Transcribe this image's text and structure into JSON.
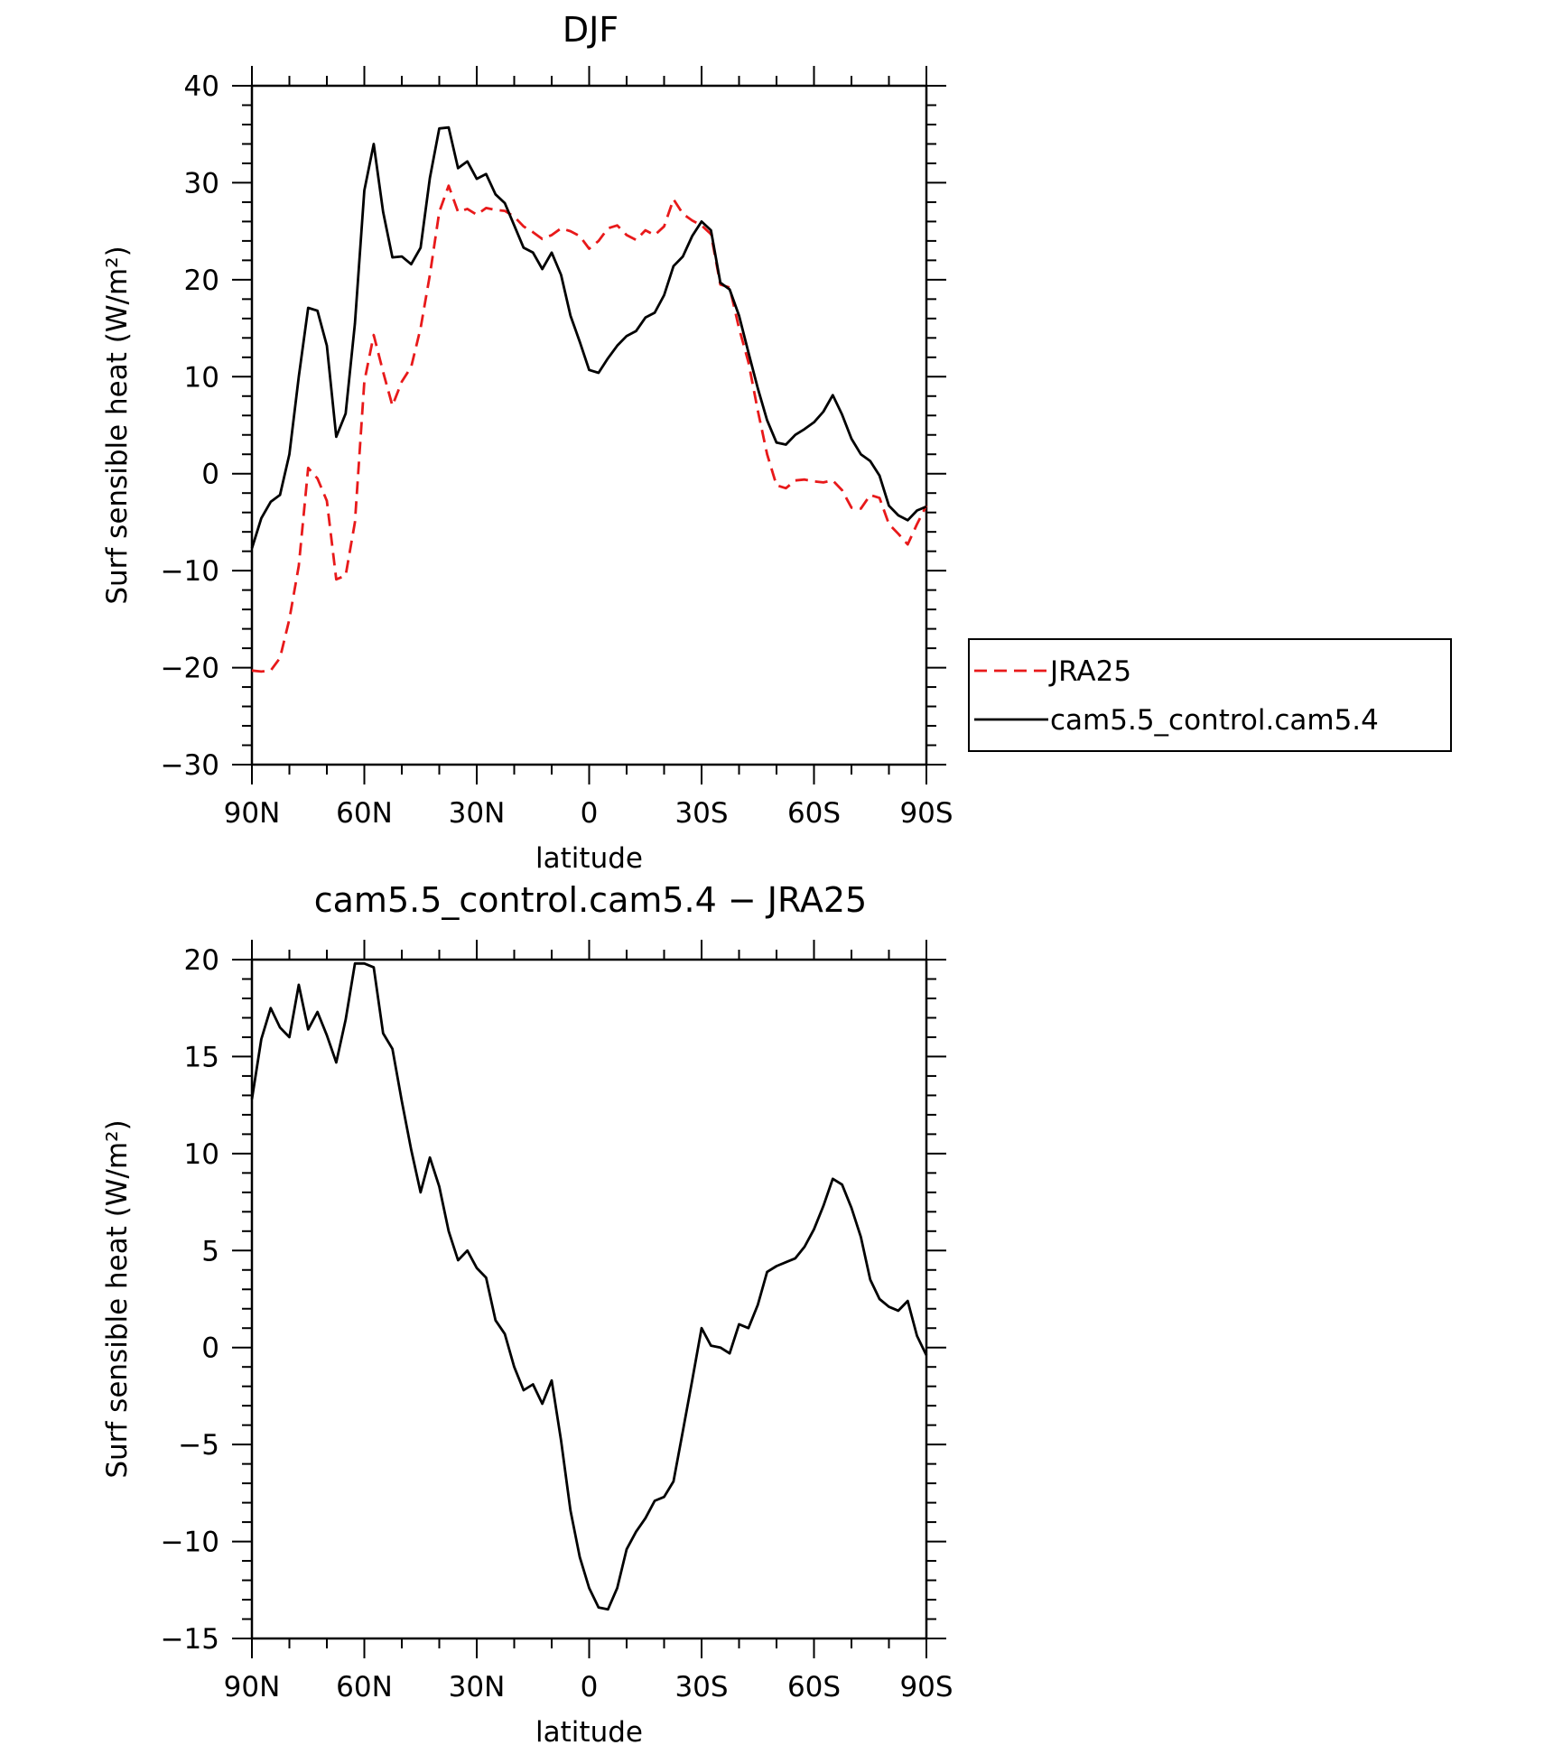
{
  "chart_data": [
    {
      "type": "line",
      "title": "DJF",
      "xlabel": "latitude",
      "ylabel": "Surf sensible heat (W/m²)",
      "xlim": [
        90,
        -90
      ],
      "ylim": [
        -30,
        40
      ],
      "xticks": [
        90,
        60,
        30,
        0,
        -30,
        -60,
        -90
      ],
      "xticklabels": [
        "90N",
        "60N",
        "30N",
        "0",
        "30S",
        "60S",
        "90S"
      ],
      "yticks": [
        -30,
        -20,
        -10,
        0,
        10,
        20,
        30,
        40
      ],
      "yticklabels": [
        "−30",
        "−20",
        "−10",
        "0",
        "10",
        "20",
        "30",
        "40"
      ],
      "legend": "right",
      "series": [
        {
          "name": "JRA25",
          "color": "#e8191a",
          "dash": "dashed",
          "x": [
            90,
            87.5,
            85,
            82.5,
            80,
            77.5,
            75,
            72.5,
            70,
            67.5,
            65,
            62.5,
            60,
            57.5,
            55,
            52.5,
            50,
            47.5,
            45,
            42.5,
            40,
            37.5,
            35,
            32.5,
            30,
            27.5,
            25,
            22.5,
            20,
            17.5,
            15,
            12.5,
            10,
            7.5,
            5,
            2.5,
            0,
            -2.5,
            -5,
            -7.5,
            -10,
            -12.5,
            -15,
            -17.5,
            -20,
            -22.5,
            -25,
            -27.5,
            -30,
            -32.5,
            -35,
            -37.5,
            -40,
            -42.5,
            -45,
            -47.5,
            -50,
            -52.5,
            -55,
            -57.5,
            -60,
            -62.5,
            -65,
            -67.5,
            -70,
            -72.5,
            -75,
            -77.5,
            -80,
            -82.5,
            -85,
            -87.5,
            -90
          ],
          "y": [
            -20.3,
            -20.4,
            -20.3,
            -19,
            -15,
            -9.5,
            0.6,
            -0.5,
            -2.8,
            -10.9,
            -10.5,
            -5,
            9.5,
            14.3,
            10.5,
            7,
            9.5,
            11,
            15,
            20.5,
            27,
            29.7,
            27,
            27.3,
            26.7,
            27.4,
            27.2,
            27.1,
            26.5,
            25.5,
            24.9,
            24.2,
            24.6,
            25.3,
            25,
            24.5,
            23.2,
            24,
            25.3,
            25.6,
            24.6,
            24.1,
            25.1,
            24.6,
            25.5,
            28.3,
            26.8,
            26.1,
            25.6,
            24.7,
            19.5,
            19.2,
            15,
            11.5,
            6.5,
            2,
            -1.2,
            -1.5,
            -0.7,
            -0.6,
            -0.8,
            -0.9,
            -0.7,
            -1.7,
            -3.5,
            -3.6,
            -2.2,
            -2.5,
            -5.2,
            -6.2,
            -7.3,
            -5.2,
            -3.3
          ]
        },
        {
          "name": "cam5.5_control.cam5.4",
          "color": "#000000",
          "dash": "solid",
          "x": [
            90,
            87.5,
            85,
            82.5,
            80,
            77.5,
            75,
            72.5,
            70,
            67.5,
            65,
            62.5,
            60,
            57.5,
            55,
            52.5,
            50,
            47.5,
            45,
            42.5,
            40,
            37.5,
            35,
            32.5,
            30,
            27.5,
            25,
            22.5,
            20,
            17.5,
            15,
            12.5,
            10,
            7.5,
            5,
            2.5,
            0,
            -2.5,
            -5,
            -7.5,
            -10,
            -12.5,
            -15,
            -17.5,
            -20,
            -22.5,
            -25,
            -27.5,
            -30,
            -32.5,
            -35,
            -37.5,
            -40,
            -42.5,
            -45,
            -47.5,
            -50,
            -52.5,
            -55,
            -57.5,
            -60,
            -62.5,
            -65,
            -67.5,
            -70,
            -72.5,
            -75,
            -77.5,
            -80,
            -82.5,
            -85,
            -87.5,
            -90
          ],
          "y": [
            -7.7,
            -4.6,
            -2.9,
            -2.2,
            2,
            10,
            17.1,
            16.8,
            13.2,
            3.8,
            6.2,
            15.5,
            29.2,
            34,
            27,
            22.3,
            22.4,
            21.6,
            23.3,
            30.5,
            35.6,
            35.7,
            31.5,
            32.2,
            30.4,
            30.9,
            28.8,
            27.9,
            25.6,
            23.3,
            22.8,
            21.1,
            22.8,
            20.5,
            16.3,
            13.6,
            10.7,
            10.4,
            11.9,
            13.2,
            14.2,
            14.7,
            16.1,
            16.6,
            18.4,
            21.4,
            22.4,
            24.5,
            26,
            25.1,
            19.7,
            19,
            16.3,
            12.5,
            8.8,
            5.5,
            3.2,
            3,
            4,
            4.6,
            5.3,
            6.4,
            8.1,
            6.1,
            3.6,
            2,
            1.3,
            -0.2,
            -3.3,
            -4.3,
            -4.8,
            -3.8,
            -3.4
          ]
        }
      ]
    },
    {
      "type": "line",
      "title": "cam5.5_control.cam5.4 − JRA25",
      "xlabel": "latitude",
      "ylabel": "Surf sensible heat (W/m²)",
      "xlim": [
        90,
        -90
      ],
      "ylim": [
        -15,
        20
      ],
      "xticks": [
        90,
        60,
        30,
        0,
        -30,
        -60,
        -90
      ],
      "xticklabels": [
        "90N",
        "60N",
        "30N",
        "0",
        "30S",
        "60S",
        "90S"
      ],
      "yticks": [
        -15,
        -10,
        -5,
        0,
        5,
        10,
        15,
        20
      ],
      "yticklabels": [
        "−15",
        "−10",
        "−5",
        "0",
        "5",
        "10",
        "15",
        "20"
      ],
      "series": [
        {
          "color": "#000000",
          "dash": "solid",
          "x": [
            90,
            87.5,
            85,
            82.5,
            80,
            77.5,
            75,
            72.5,
            70,
            67.5,
            65,
            62.5,
            60,
            57.5,
            55,
            52.5,
            50,
            47.5,
            45,
            42.5,
            40,
            37.5,
            35,
            32.5,
            30,
            27.5,
            25,
            22.5,
            20,
            17.5,
            15,
            12.5,
            10,
            7.5,
            5,
            2.5,
            0,
            -2.5,
            -5,
            -7.5,
            -10,
            -12.5,
            -15,
            -17.5,
            -20,
            -22.5,
            -25,
            -27.5,
            -30,
            -32.5,
            -35,
            -37.5,
            -40,
            -42.5,
            -45,
            -47.5,
            -50,
            -52.5,
            -55,
            -57.5,
            -60,
            -62.5,
            -65,
            -67.5,
            -70,
            -72.5,
            -75,
            -77.5,
            -80,
            -82.5,
            -85,
            -87.5,
            -90
          ],
          "y": [
            12.8,
            15.9,
            17.5,
            16.5,
            16,
            18.7,
            16.4,
            17.3,
            16.1,
            14.7,
            16.9,
            19.8,
            19.8,
            19.6,
            16.2,
            15.4,
            12.7,
            10.2,
            8,
            9.8,
            8.3,
            6,
            4.5,
            5,
            4.1,
            3.6,
            1.4,
            0.7,
            -1,
            -2.2,
            -1.9,
            -2.9,
            -1.7,
            -4.8,
            -8.4,
            -10.8,
            -12.4,
            -13.4,
            -13.5,
            -12.4,
            -10.4,
            -9.5,
            -8.8,
            -7.9,
            -7.7,
            -6.9,
            -4.3,
            -1.7,
            1,
            0.1,
            0,
            -0.3,
            1.2,
            1,
            2.2,
            3.9,
            4.2,
            4.4,
            4.6,
            5.2,
            6.1,
            7.3,
            8.7,
            8.4,
            7.2,
            5.7,
            3.5,
            2.5,
            2.1,
            1.9,
            2.4,
            0.6,
            -0.4
          ]
        }
      ]
    }
  ]
}
